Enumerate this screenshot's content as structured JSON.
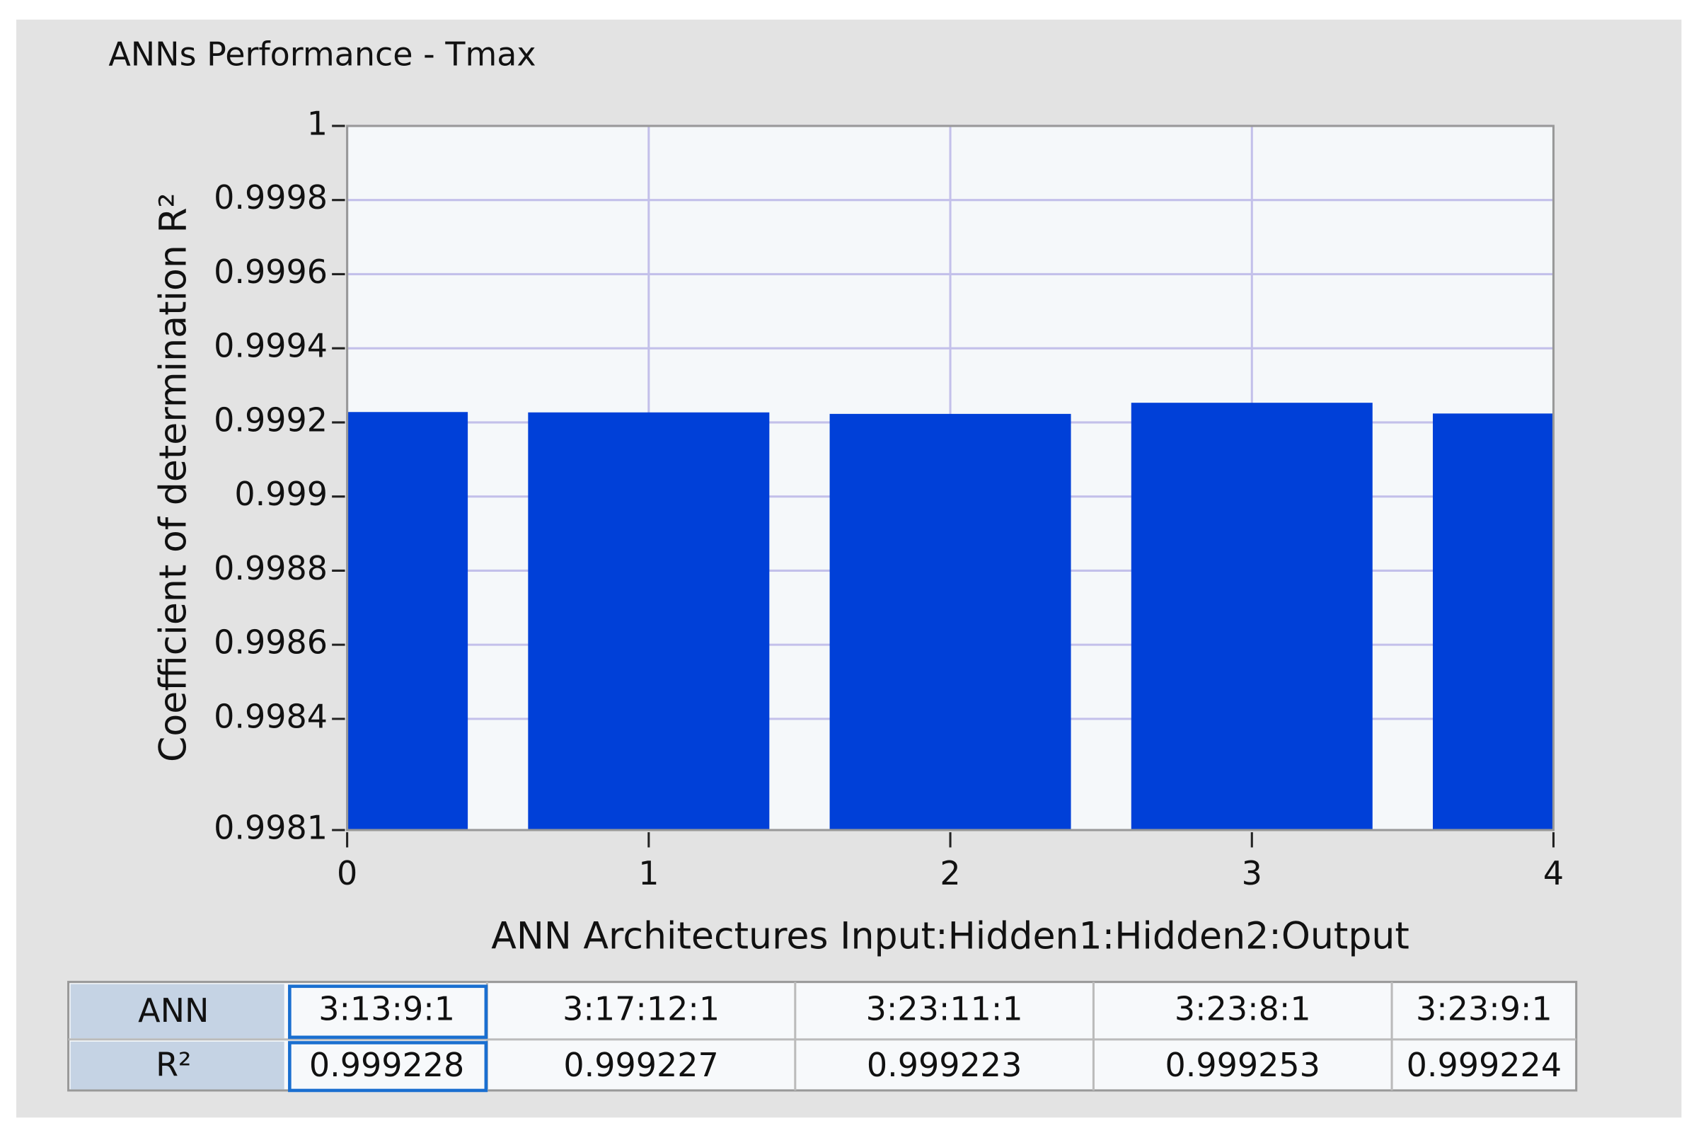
{
  "chart_data": {
    "type": "bar",
    "title": "ANNs Performance - Tmax",
    "x_label": "ANN Architectures Input:Hidden1:Hidden2:Output",
    "y_label": "Coefficient of determination R²",
    "x": [
      0,
      1,
      2,
      3,
      4
    ],
    "categories": [
      "3:13:9:1",
      "3:17:12:1",
      "3:23:11:1",
      "3:23:8:1",
      "3:23:9:1"
    ],
    "values": [
      0.999228,
      0.999227,
      0.999223,
      0.999253,
      0.999224
    ],
    "color": "#0040d8",
    "xlim": [
      0,
      4
    ],
    "xticks": [
      0,
      1,
      2,
      3,
      4
    ],
    "ylim": [
      0.9981,
      1
    ],
    "yticks": [
      0.9981,
      0.9984,
      0.9986,
      0.9988,
      0.999,
      0.9992,
      0.9994,
      0.9996,
      0.9998,
      1
    ],
    "grid": true,
    "table": {
      "row_labels": [
        "ANN",
        "R²"
      ]
    }
  }
}
